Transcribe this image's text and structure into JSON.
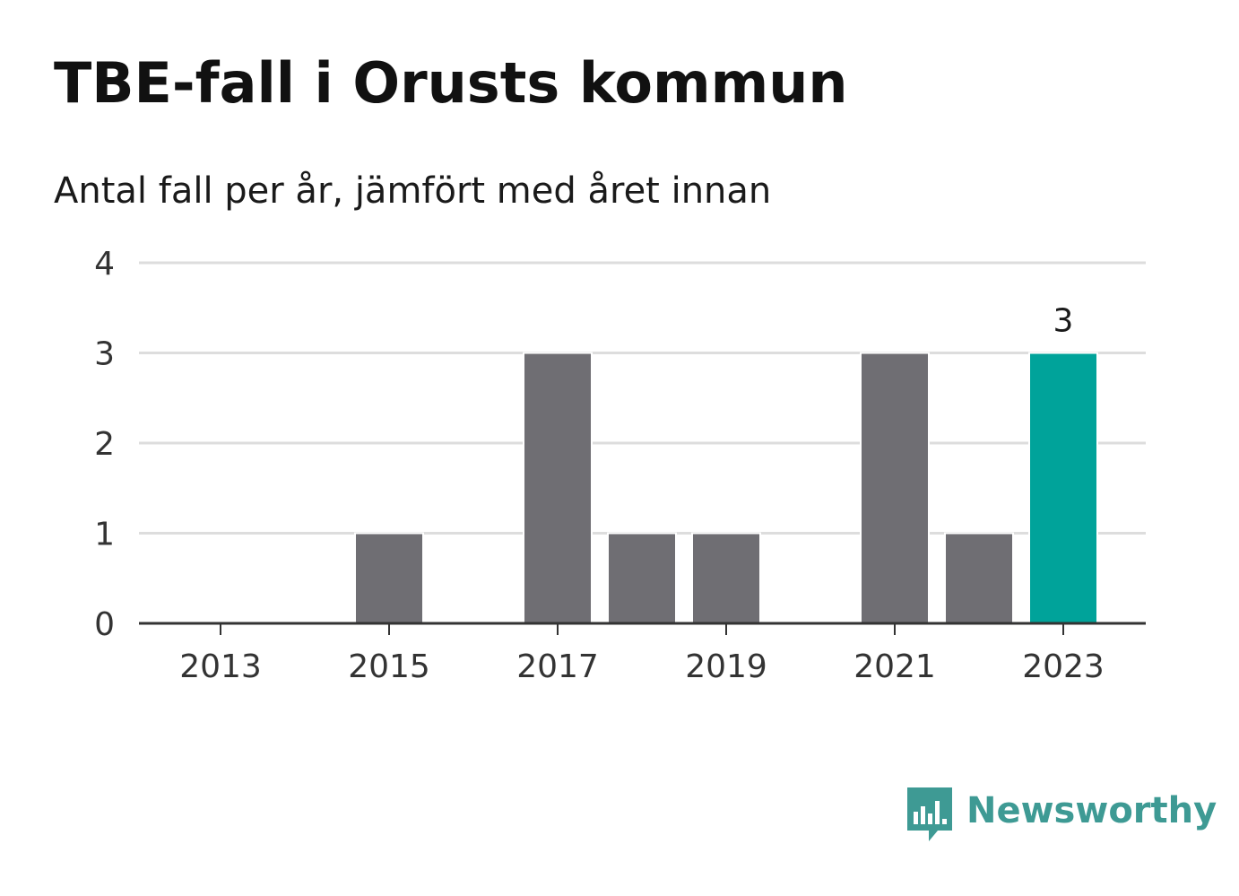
{
  "colors": {
    "bar": "#6f6e73",
    "highlight": "#00a39a",
    "grid": "#dddddd",
    "axis": "#333333",
    "brand": "#3e9a94"
  },
  "brand": {
    "name": "Newsworthy",
    "icon": "newsworthy-logo-icon"
  },
  "chart_data": {
    "type": "bar",
    "title": "TBE-fall i Orusts kommun",
    "subtitle": "Antal fall per år, jämfört med året innan",
    "categories": [
      "2013",
      "2014",
      "2015",
      "2016",
      "2017",
      "2018",
      "2019",
      "2020",
      "2021",
      "2022",
      "2023"
    ],
    "values": [
      0,
      0,
      1,
      0,
      3,
      1,
      1,
      0,
      3,
      1,
      3
    ],
    "highlight_index": 10,
    "data_labels": [
      {
        "index": 10,
        "text": "3"
      }
    ],
    "x_tick_labels": [
      "2013",
      "2015",
      "2017",
      "2019",
      "2021",
      "2023"
    ],
    "y_ticks": [
      0,
      1,
      2,
      3,
      4
    ],
    "ylim": [
      0,
      4
    ],
    "xlabel": "",
    "ylabel": "",
    "grid": true,
    "legend": "none"
  }
}
